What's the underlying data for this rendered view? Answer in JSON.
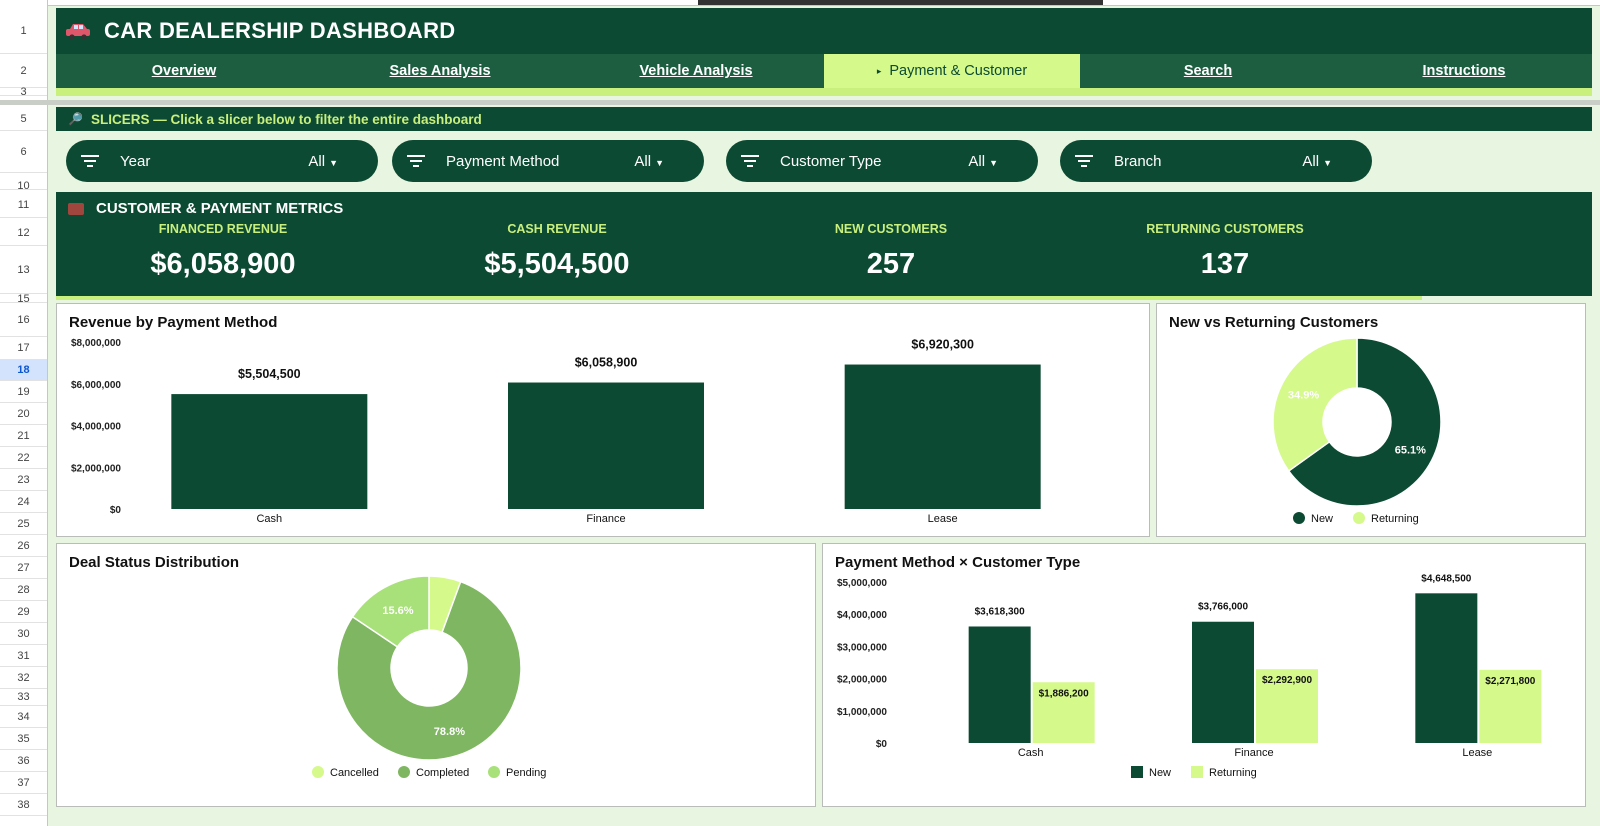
{
  "row_numbers": [
    "1",
    "2",
    "3",
    "5",
    "6",
    "10",
    "11",
    "12",
    "13",
    "15",
    "16",
    "17",
    "18",
    "19",
    "20",
    "21",
    "22",
    "23",
    "24",
    "25",
    "26",
    "27",
    "28",
    "29",
    "30",
    "31",
    "32",
    "33",
    "34",
    "35",
    "36",
    "37",
    "38"
  ],
  "header": {
    "title": "CAR DEALERSHIP DASHBOARD",
    "car_icon": "car-icon"
  },
  "nav": {
    "tabs": [
      {
        "label": "Overview",
        "active": false
      },
      {
        "label": "Sales Analysis",
        "active": false
      },
      {
        "label": "Vehicle Analysis",
        "active": false
      },
      {
        "label": "Payment & Customer",
        "active": true
      },
      {
        "label": "Search",
        "active": false
      },
      {
        "label": "Instructions",
        "active": false
      }
    ],
    "active_marker": "▸"
  },
  "slicers": {
    "banner": "SLICERS — Click a slicer below to filter the entire dashboard",
    "banner_icon": "🔎",
    "items": [
      {
        "label": "Year",
        "value": "All"
      },
      {
        "label": "Payment Method",
        "value": "All"
      },
      {
        "label": "Customer Type",
        "value": "All"
      },
      {
        "label": "Branch",
        "value": "All"
      }
    ]
  },
  "metrics": {
    "heading": "CUSTOMER & PAYMENT METRICS",
    "items": [
      {
        "label": "FINANCED REVENUE",
        "value": "$6,058,900"
      },
      {
        "label": "CASH REVENUE",
        "value": "$5,504,500"
      },
      {
        "label": "NEW CUSTOMERS",
        "value": "257"
      },
      {
        "label": "RETURNING CUSTOMERS",
        "value": "137"
      }
    ]
  },
  "colors": {
    "dark_green": "#0c4a33",
    "mid_green": "#7fb661",
    "light_green": "#d5f98b",
    "pale_green": "#9fd86f",
    "lime": "#c9ef7d"
  },
  "chart_data": [
    {
      "id": "revenue_by_payment",
      "type": "bar",
      "title": "Revenue by Payment Method",
      "categories": [
        "Cash",
        "Finance",
        "Lease"
      ],
      "values": [
        5504500,
        6058900,
        6920300
      ],
      "data_labels": [
        "$5,504,500",
        "$6,058,900",
        "$6,920,300"
      ],
      "yticks": [
        "$0",
        "$2,000,000",
        "$4,000,000",
        "$6,000,000",
        "$8,000,000"
      ],
      "ylim": [
        0,
        8000000
      ],
      "color": "#0c4a33"
    },
    {
      "id": "new_vs_returning",
      "type": "pie",
      "title": "New vs Returning Customers",
      "labels": [
        "New",
        "Returning"
      ],
      "values": [
        65.1,
        34.9
      ],
      "data_labels": [
        "65.1%",
        "34.9%"
      ],
      "colors": [
        "#0c4a33",
        "#d5f98b"
      ],
      "legend": "bottom"
    },
    {
      "id": "deal_status",
      "type": "pie",
      "title": "Deal Status Distribution",
      "labels": [
        "Cancelled",
        "Completed",
        "Pending"
      ],
      "values": [
        5.6,
        78.8,
        15.6
      ],
      "data_labels": [
        "",
        "78.8%",
        "15.6%"
      ],
      "colors": [
        "#d5f98b",
        "#7fb661",
        "#a8e07a"
      ],
      "legend": "bottom"
    },
    {
      "id": "payment_x_customer",
      "type": "bar",
      "title": "Payment Method × Customer Type",
      "categories": [
        "Cash",
        "Finance",
        "Lease"
      ],
      "series": [
        {
          "name": "New",
          "values": [
            3618300,
            3766000,
            4648500
          ],
          "labels": [
            "$3,618,300",
            "$3,766,000",
            "$4,648,500"
          ],
          "color": "#0c4a33"
        },
        {
          "name": "Returning",
          "values": [
            1886200,
            2292900,
            2271800
          ],
          "labels": [
            "$1,886,200",
            "$2,292,900",
            "$2,271,800"
          ],
          "color": "#d5f98b"
        }
      ],
      "yticks": [
        "$0",
        "$1,000,000",
        "$2,000,000",
        "$3,000,000",
        "$4,000,000",
        "$5,000,000"
      ],
      "ylim": [
        0,
        5000000
      ],
      "legend": "bottom"
    }
  ]
}
